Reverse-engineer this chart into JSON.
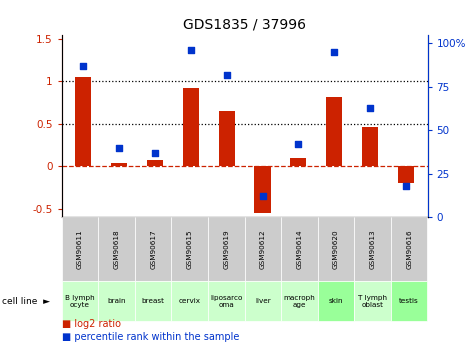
{
  "title": "GDS1835 / 37996",
  "gsm_labels": [
    "GSM90611",
    "GSM90618",
    "GSM90617",
    "GSM90615",
    "GSM90619",
    "GSM90612",
    "GSM90614",
    "GSM90620",
    "GSM90613",
    "GSM90616"
  ],
  "cell_lines": [
    "B lymph\nocyte",
    "brain",
    "breast",
    "cervix",
    "liposarco\noma",
    "liver",
    "macroph\nage",
    "skin",
    "T lymph\noblast",
    "testis"
  ],
  "cell_bg_colors": [
    "#ccffcc",
    "#ccffcc",
    "#ccffcc",
    "#ccffcc",
    "#ccffcc",
    "#ccffcc",
    "#ccffcc",
    "#99ff99",
    "#ccffcc",
    "#99ff99"
  ],
  "log2_ratio": [
    1.05,
    0.04,
    0.07,
    0.92,
    0.65,
    -0.55,
    0.1,
    0.82,
    0.46,
    -0.2
  ],
  "percentile_rank": [
    87,
    40,
    37,
    96,
    82,
    12,
    42,
    95,
    63,
    18
  ],
  "ylim_left": [
    -0.6,
    1.55
  ],
  "ylim_right": [
    0,
    105
  ],
  "yticks_left": [
    -0.5,
    0.0,
    0.5,
    1.0,
    1.5
  ],
  "yticks_right": [
    0,
    25,
    50,
    75,
    100
  ],
  "bar_color": "#cc2200",
  "dot_color": "#0033cc",
  "background_color": "#ffffff",
  "plot_bg": "#ffffff",
  "gsm_bg": "#cccccc"
}
